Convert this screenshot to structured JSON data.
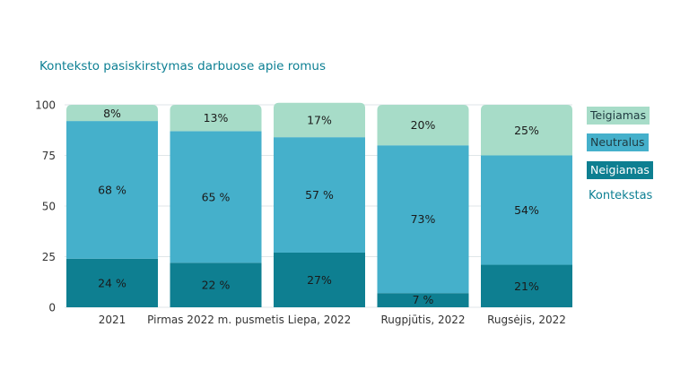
{
  "chart_data": {
    "type": "bar",
    "stacked": true,
    "title": "Konteksto pasiskirstymas darbuose apie romus",
    "categories": [
      "2021",
      "Pirmas 2022 m. pusmetis",
      "Liepa, 2022",
      "Rugpjūtis, 2022",
      "Rugsėjis, 2022"
    ],
    "series": [
      {
        "name": "Neigiamas",
        "color": "#0e7f91",
        "values": [
          24,
          22,
          27,
          7,
          21
        ],
        "labels": [
          "24 %",
          "22 %",
          "27%",
          "7 %",
          "21%"
        ]
      },
      {
        "name": "Neutralus",
        "color": "#45b0cb",
        "values": [
          68,
          65,
          57,
          73,
          54
        ],
        "labels": [
          "68 %",
          "65 %",
          "57 %",
          "73%",
          "54%"
        ]
      },
      {
        "name": "Teigiamas",
        "color": "#a7dcc8",
        "values": [
          8,
          13,
          17,
          20,
          25
        ],
        "labels": [
          "8%",
          "13%",
          "17%",
          "20%",
          "25%"
        ]
      }
    ],
    "yticks": [
      0,
      25,
      50,
      75,
      100
    ],
    "ylim": [
      0,
      100
    ],
    "grid": true,
    "legend": {
      "placement": "right",
      "title": "Kontekstas",
      "order": [
        "Teigiamas",
        "Neutralus",
        "Neigiamas"
      ]
    }
  }
}
